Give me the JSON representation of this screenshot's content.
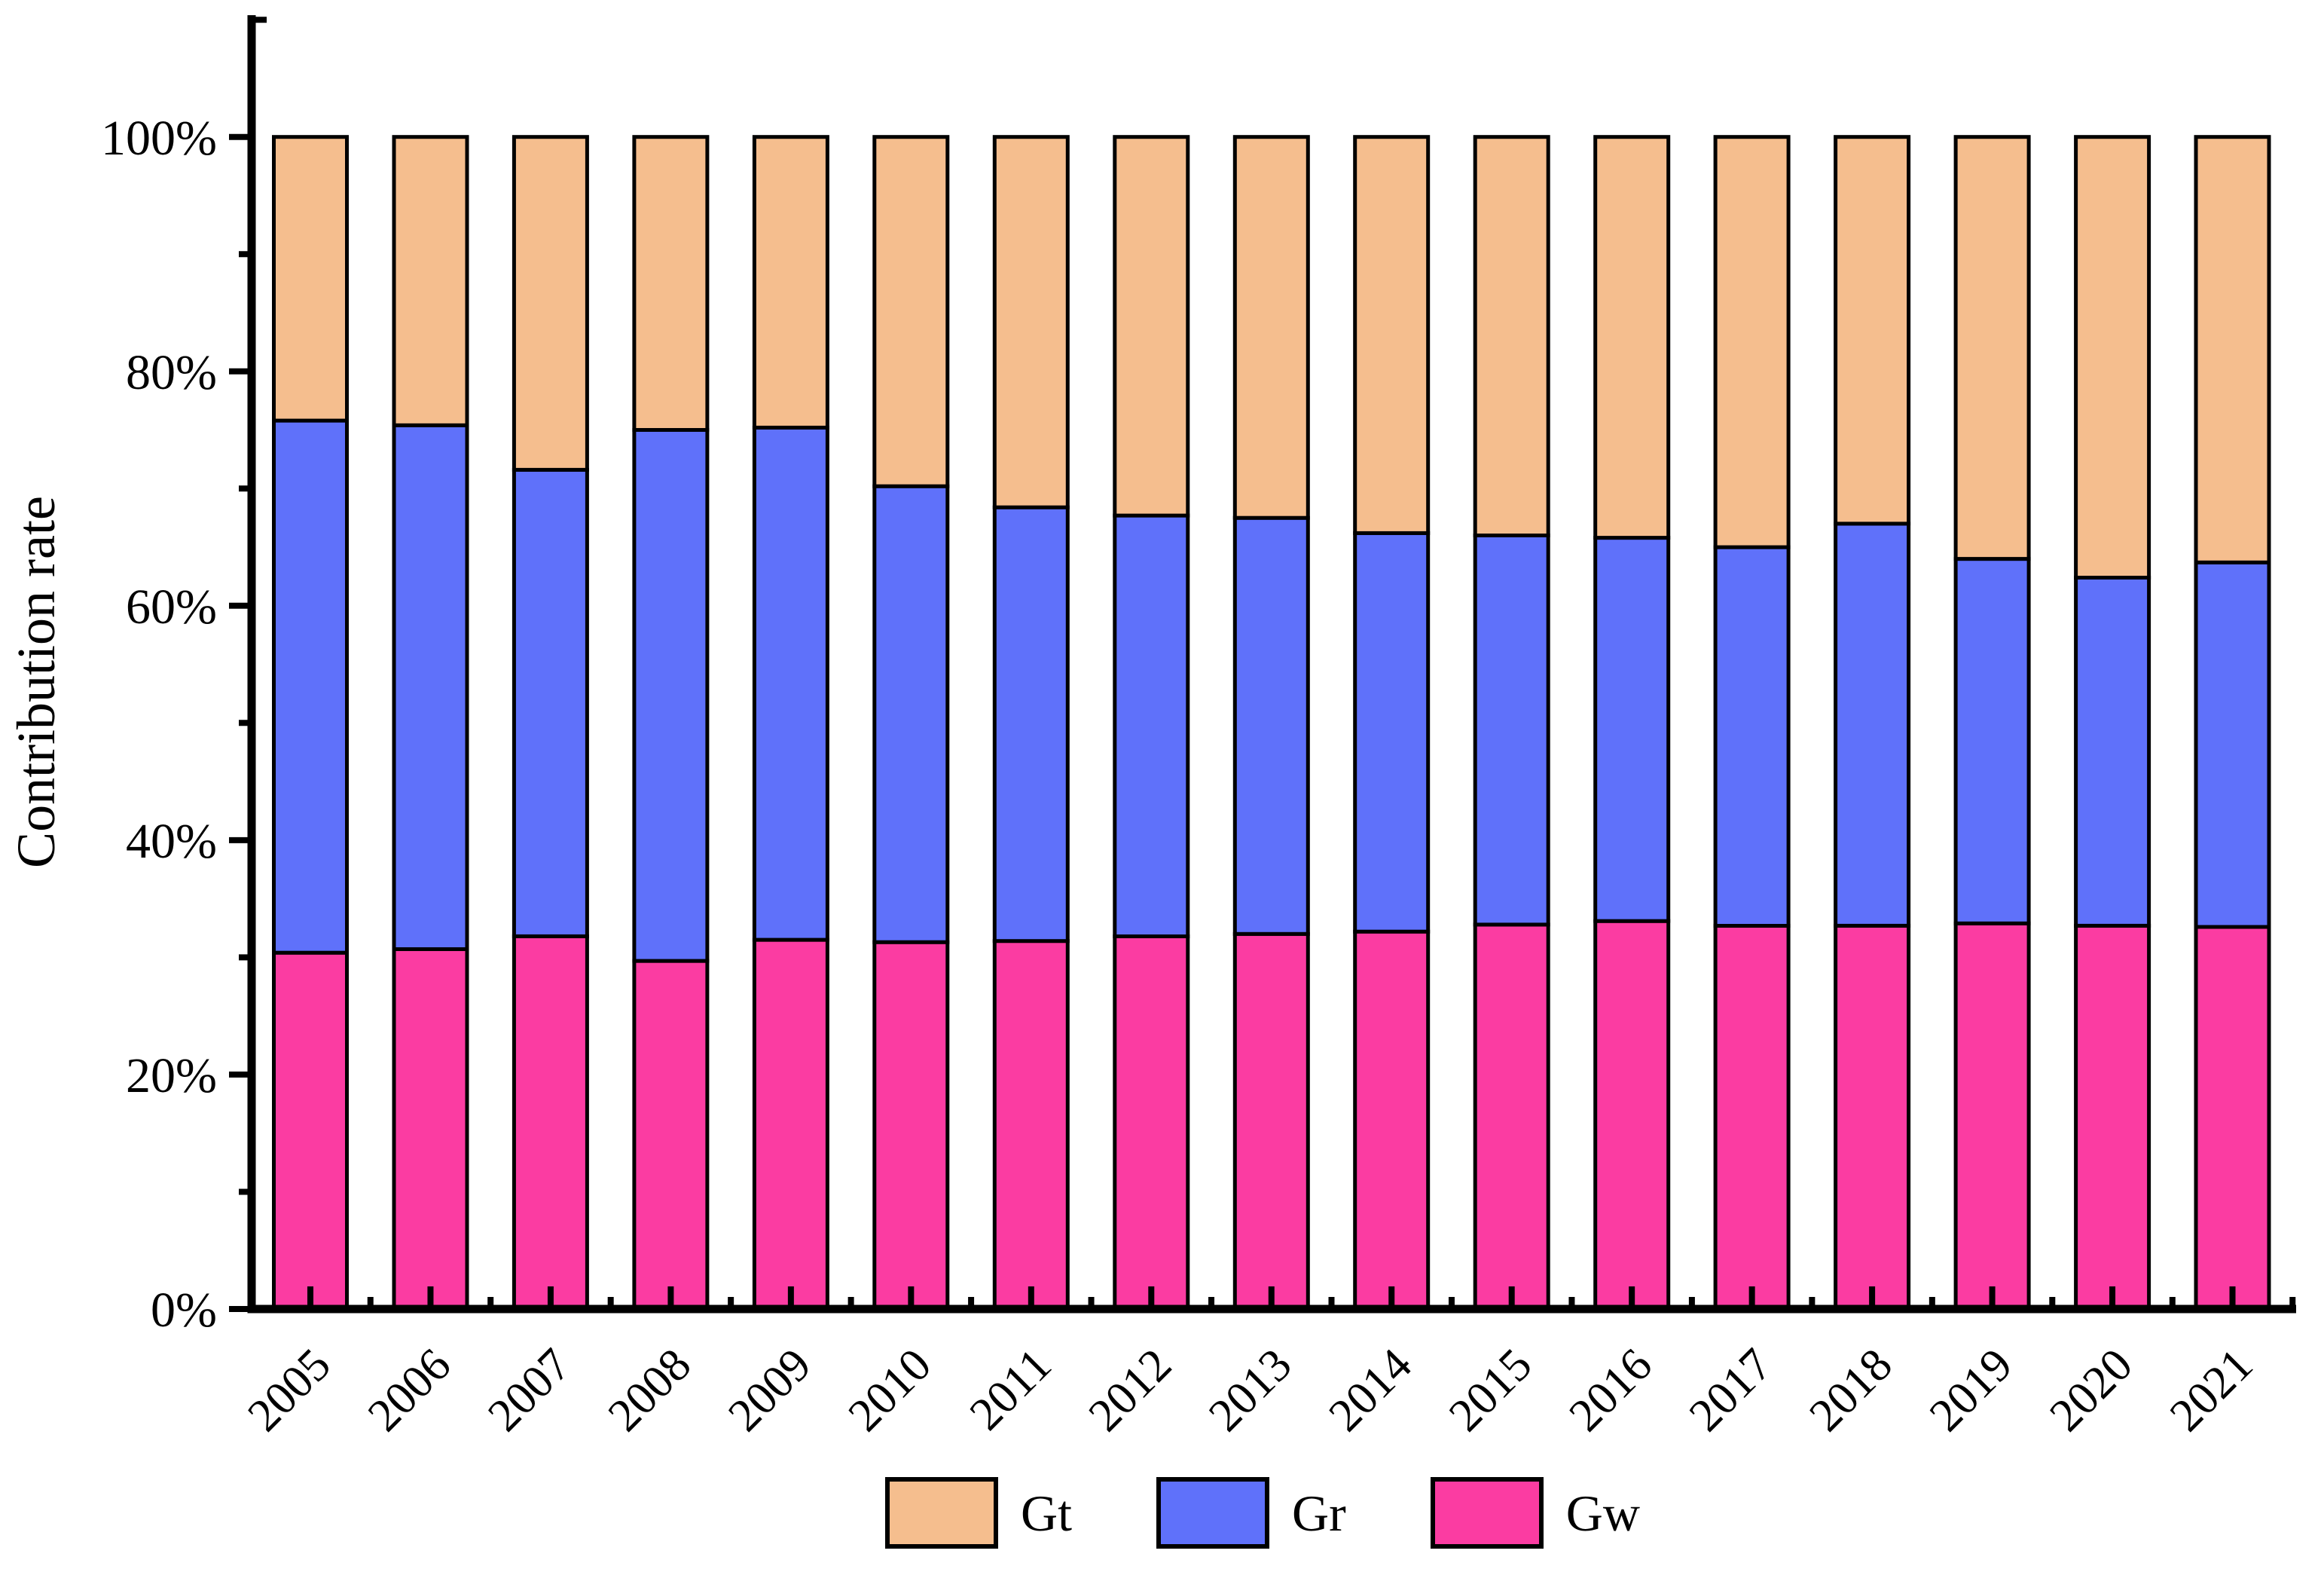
{
  "figure": {
    "background": "#FFFFFF"
  },
  "y_axis": {
    "title": "Contribution rate",
    "tick_labels": [
      "0%",
      "20%",
      "40%",
      "60%",
      "80%",
      "100%"
    ],
    "major_ticks_pct": [
      0,
      20,
      40,
      60,
      80,
      100
    ],
    "minor_ticks_pct": [
      10,
      30,
      50,
      70,
      90
    ],
    "axis_top_tick_pct": 110,
    "range_pct": [
      0,
      110
    ]
  },
  "x_axis": {
    "categories": [
      "2005",
      "2006",
      "2007",
      "2008",
      "2009",
      "2010",
      "2011",
      "2012",
      "2013",
      "2014",
      "2015",
      "2016",
      "2017",
      "2018",
      "2019",
      "2020",
      "2021"
    ]
  },
  "legend": {
    "items": [
      {
        "label": "Gt",
        "color": "#F5BE8E"
      },
      {
        "label": "Gr",
        "color": "#5F71FA"
      },
      {
        "label": "Gw",
        "color": "#FB3CA2"
      }
    ]
  },
  "chart_data": {
    "type": "bar",
    "stacked": true,
    "title": "",
    "xlabel": "",
    "ylabel": "Contribution rate",
    "ylim": [
      0,
      110
    ],
    "grid": false,
    "legend_position": "bottom",
    "unit": "percent",
    "categories": [
      "2005",
      "2006",
      "2007",
      "2008",
      "2009",
      "2010",
      "2011",
      "2012",
      "2013",
      "2014",
      "2015",
      "2016",
      "2017",
      "2018",
      "2019",
      "2020",
      "2021"
    ],
    "series": [
      {
        "name": "Gw",
        "color": "#FB3CA2",
        "values": [
          30.4,
          30.7,
          31.8,
          29.7,
          31.5,
          31.3,
          31.4,
          31.8,
          32.0,
          32.2,
          32.8,
          33.1,
          32.7,
          32.7,
          32.9,
          32.7,
          32.6
        ]
      },
      {
        "name": "Gr",
        "color": "#5F71FA",
        "values": [
          45.4,
          44.7,
          39.8,
          45.3,
          43.7,
          38.9,
          37.0,
          35.9,
          35.5,
          34.0,
          33.2,
          32.7,
          32.3,
          34.3,
          31.1,
          29.7,
          31.1
        ]
      },
      {
        "name": "Gt",
        "color": "#F5BE8E",
        "values": [
          24.2,
          24.6,
          28.4,
          25.0,
          24.8,
          29.8,
          31.6,
          32.3,
          32.5,
          33.8,
          34.0,
          34.2,
          35.0,
          33.0,
          36.0,
          37.6,
          36.3
        ]
      }
    ]
  }
}
